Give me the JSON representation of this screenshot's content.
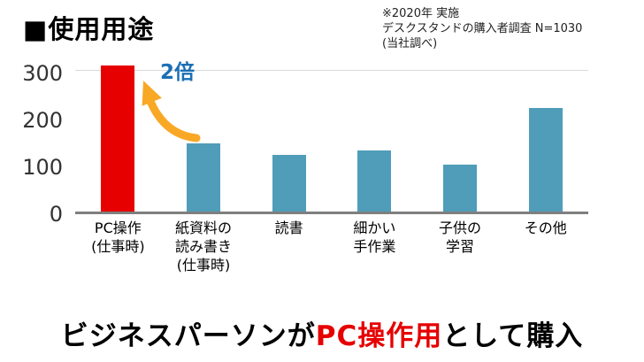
{
  "header": {
    "title": "■使用用途",
    "note_lines": [
      "※2020年 実施",
      "デスクスタンドの購入者調査 N=1030",
      "(当社調べ)"
    ]
  },
  "chart_data": {
    "type": "bar",
    "title": "使用用途",
    "categories": [
      "PC操作\n(仕事時)",
      "紙資料の\n読み書き\n(仕事時)",
      "読書",
      "細かい\n手作業",
      "子供の\n学習",
      "その他"
    ],
    "values": [
      310,
      145,
      120,
      130,
      100,
      220
    ],
    "bar_colors": [
      "#e60000",
      "#4f9db8",
      "#4f9db8",
      "#4f9db8",
      "#4f9db8",
      "#4f9db8"
    ],
    "xlabel": "",
    "ylabel": "",
    "ylim": [
      0,
      320
    ],
    "yticks": [
      0,
      100,
      200,
      300
    ],
    "gridline_at": 300,
    "grid": "top line only",
    "legend": "none",
    "annotation": {
      "text": "2倍",
      "color": "#1a6fb5",
      "target": "PC操作(仕事時)"
    },
    "arrow_color": "#f9a825"
  },
  "footer": {
    "prefix": "ビジネスパーソンが",
    "highlight": "PC操作用",
    "suffix": "として購入",
    "highlight_color": "#e60000"
  }
}
